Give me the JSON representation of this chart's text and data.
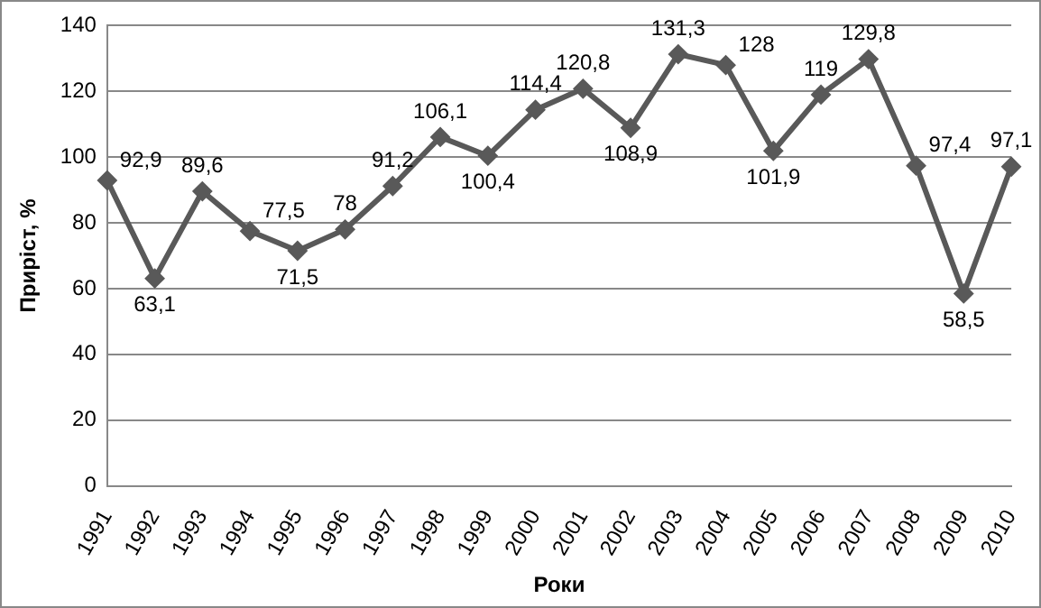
{
  "chart_data": {
    "type": "line",
    "xlabel": "Роки",
    "ylabel": "Приріст, %",
    "categories": [
      "1991",
      "1992",
      "1993",
      "1994",
      "1995",
      "1996",
      "1997",
      "1998",
      "1999",
      "2000",
      "2001",
      "2002",
      "2003",
      "2004",
      "2005",
      "2006",
      "2007",
      "2008",
      "2009",
      "2010"
    ],
    "series": [
      {
        "color": "#595959",
        "values": [
          92.9,
          63.1,
          89.6,
          77.5,
          71.5,
          78,
          91.2,
          106.1,
          100.4,
          114.4,
          120.8,
          108.9,
          131.3,
          128,
          101.9,
          119,
          129.8,
          97.4,
          58.5,
          97.1
        ],
        "value_labels": [
          "92,9",
          "63,1",
          "89,6",
          "77,5",
          "71,5",
          "78",
          "91,2",
          "106,1",
          "100,4",
          "114,4",
          "120,8",
          "108,9",
          "131,3",
          "128",
          "101,9",
          "119",
          "129,8",
          "97,4",
          "58,5",
          "97,1"
        ]
      }
    ],
    "ylim": [
      0,
      140
    ],
    "yticks": [
      0,
      20,
      40,
      60,
      80,
      100,
      120,
      140
    ],
    "grid": "y",
    "legend": false,
    "marker": "diamond",
    "line_style": "solid"
  }
}
